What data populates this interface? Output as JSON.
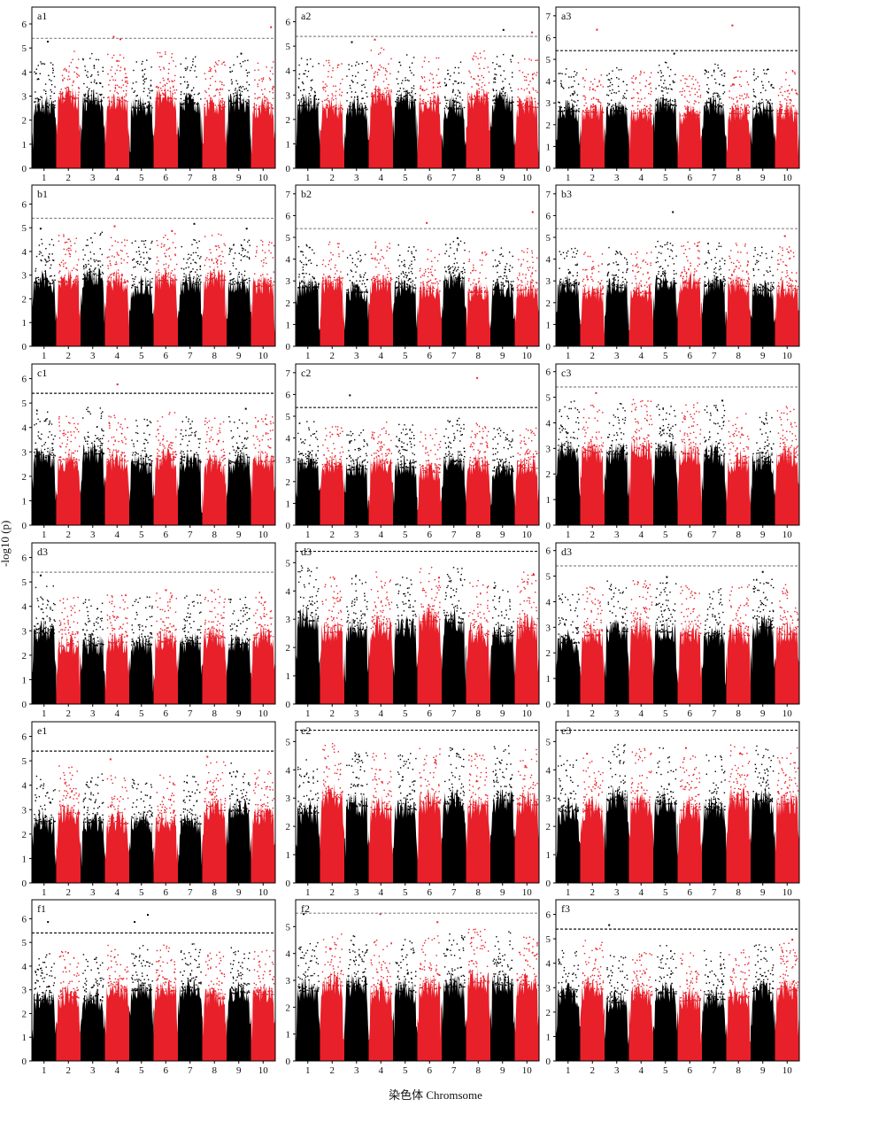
{
  "figure": {
    "ylabel": "-log10 (p)",
    "xlabel": "染色体 Chromsome"
  },
  "colors": {
    "odd_chromosome": "#000000",
    "even_chromosome": "#e8202a",
    "threshold_line": "#666666",
    "frame": "#000000"
  },
  "chart_data": [
    {
      "type": "scatter",
      "id": "a1",
      "label": "a1",
      "x_ticks": [
        "1",
        "2",
        "3",
        "4",
        "5",
        "6",
        "7",
        "8",
        "9",
        "10"
      ],
      "y_ticks": [
        0,
        1,
        2,
        3,
        4,
        5,
        6
      ],
      "ylim": [
        0,
        6.7
      ],
      "threshold": 5.4,
      "threshold_style": "grey",
      "peaks": [
        5.9,
        5.4,
        5.5,
        5.3,
        4.5,
        4.8
      ]
    },
    {
      "type": "scatter",
      "id": "a2",
      "label": "a2",
      "x_ticks": [
        "1",
        "2",
        "3",
        "4",
        "5",
        "6",
        "7",
        "8",
        "9",
        "10"
      ],
      "y_ticks": [
        0,
        1,
        2,
        3,
        4,
        5,
        6
      ],
      "ylim": [
        0,
        6.6
      ],
      "threshold": 5.4,
      "threshold_style": "grey",
      "peaks": [
        5.7,
        5.2,
        5.3,
        5.6
      ]
    },
    {
      "type": "scatter",
      "id": "a3",
      "label": "a3",
      "x_ticks": [
        "1",
        "2",
        "3",
        "4",
        "5",
        "6",
        "7",
        "8",
        "9",
        "10"
      ],
      "y_ticks": [
        0,
        1,
        2,
        3,
        4,
        5,
        6,
        7
      ],
      "ylim": [
        0,
        7.4
      ],
      "threshold": 5.4,
      "threshold_style": "black",
      "peaks": [
        6.6,
        6.4,
        5.3
      ]
    },
    {
      "type": "scatter",
      "id": "b1",
      "label": "b1",
      "x_ticks": [
        "1",
        "2",
        "3",
        "4",
        "5",
        "6",
        "7",
        "8",
        "9",
        "10"
      ],
      "y_ticks": [
        0,
        1,
        2,
        3,
        4,
        5,
        6
      ],
      "ylim": [
        0,
        6.8
      ],
      "threshold": 5.4,
      "threshold_style": "grey",
      "peaks": [
        5.2,
        5.0,
        4.9,
        5.0,
        5.1
      ]
    },
    {
      "type": "scatter",
      "id": "b2",
      "label": "b2",
      "x_ticks": [
        "1",
        "2",
        "3",
        "4",
        "5",
        "6",
        "7",
        "8",
        "9",
        "10"
      ],
      "y_ticks": [
        0,
        1,
        2,
        3,
        4,
        5,
        6,
        7
      ],
      "ylim": [
        0,
        7.4
      ],
      "threshold": 5.4,
      "threshold_style": "grey",
      "peaks": [
        5.7,
        6.2,
        5.0
      ]
    },
    {
      "type": "scatter",
      "id": "b3",
      "label": "b3",
      "x_ticks": [
        "1",
        "2",
        "3",
        "4",
        "5",
        "6",
        "7",
        "8",
        "9",
        "10"
      ],
      "y_ticks": [
        0,
        1,
        2,
        3,
        4,
        5,
        6,
        7
      ],
      "ylim": [
        0,
        7.4
      ],
      "threshold": 5.4,
      "threshold_style": "grey",
      "peaks": [
        6.2,
        5.1
      ]
    },
    {
      "type": "scatter",
      "id": "c1",
      "label": "c1",
      "x_ticks": [
        "1",
        "2",
        "3",
        "4",
        "5",
        "6",
        "7",
        "8",
        "9",
        "10"
      ],
      "y_ticks": [
        0,
        1,
        2,
        3,
        4,
        5,
        6
      ],
      "ylim": [
        0,
        6.6
      ],
      "threshold": 5.4,
      "threshold_style": "black",
      "peaks": [
        5.8,
        4.8
      ]
    },
    {
      "type": "scatter",
      "id": "c2",
      "label": "c2",
      "x_ticks": [
        "1",
        "2",
        "3",
        "4",
        "5",
        "6",
        "7",
        "8",
        "9",
        "10"
      ],
      "y_ticks": [
        0,
        1,
        2,
        3,
        4,
        5,
        6,
        7
      ],
      "ylim": [
        0,
        7.4
      ],
      "threshold": 5.4,
      "threshold_style": "black",
      "peaks": [
        6.0,
        6.8
      ]
    },
    {
      "type": "scatter",
      "id": "c3",
      "label": "c3",
      "x_ticks": [
        "1",
        "2",
        "3",
        "4",
        "5",
        "6",
        "7",
        "8",
        "9",
        "10"
      ],
      "y_ticks": [
        0,
        1,
        2,
        3,
        4,
        5,
        6
      ],
      "ylim": [
        0,
        6.3
      ],
      "threshold": 5.4,
      "threshold_style": "grey",
      "peaks": [
        5.2,
        4.9
      ]
    },
    {
      "type": "scatter",
      "id": "d3a",
      "label": "d3",
      "x_ticks": [
        "1",
        "2",
        "3",
        "4",
        "5",
        "6",
        "7",
        "8",
        "9",
        "10"
      ],
      "y_ticks": [
        0,
        1,
        2,
        3,
        4,
        5,
        6
      ],
      "ylim": [
        0,
        6.6
      ],
      "threshold": 5.4,
      "threshold_style": "grey",
      "peaks": [
        5.3,
        4.7
      ]
    },
    {
      "type": "scatter",
      "id": "d3b",
      "label": "d3",
      "x_ticks": [
        "1",
        "2",
        "3",
        "4",
        "5",
        "6",
        "7",
        "8",
        "9",
        "10"
      ],
      "y_ticks": [
        0,
        1,
        2,
        3,
        4,
        5
      ],
      "ylim": [
        0,
        5.7
      ],
      "threshold": 5.4,
      "threshold_style": "black",
      "peaks": [
        4.6,
        4.5
      ]
    },
    {
      "type": "scatter",
      "id": "d3c",
      "label": "d3",
      "x_ticks": [
        "1",
        "2",
        "3",
        "4",
        "5",
        "6",
        "7",
        "8",
        "9",
        "10"
      ],
      "y_ticks": [
        0,
        1,
        2,
        3,
        4,
        5,
        6
      ],
      "ylim": [
        0,
        6.3
      ],
      "threshold": 5.4,
      "threshold_style": "grey",
      "peaks": [
        5.2,
        5.0
      ]
    },
    {
      "type": "scatter",
      "id": "e1",
      "label": "e1",
      "x_ticks": [
        "1",
        "2",
        "3",
        "4",
        "5",
        "6",
        "7",
        "8",
        "9",
        "10"
      ],
      "y_ticks": [
        0,
        1,
        2,
        3,
        4,
        5,
        6
      ],
      "ylim": [
        0,
        6.6
      ],
      "threshold": 5.4,
      "threshold_style": "black",
      "peaks": [
        5.2,
        5.1
      ]
    },
    {
      "type": "scatter",
      "id": "e2",
      "label": "e2",
      "x_ticks": [
        "1",
        "2",
        "3",
        "4",
        "5",
        "6",
        "7",
        "8",
        "9",
        "10"
      ],
      "y_ticks": [
        0,
        1,
        2,
        3,
        4,
        5
      ],
      "ylim": [
        0,
        5.7
      ],
      "threshold": 5.4,
      "threshold_style": "black",
      "peaks": [
        4.6,
        4.5
      ]
    },
    {
      "type": "scatter",
      "id": "e3",
      "label": "e3",
      "x_ticks": [
        "1",
        "2",
        "3",
        "4",
        "5",
        "6",
        "7",
        "8",
        "9",
        "10"
      ],
      "y_ticks": [
        0,
        1,
        2,
        3,
        4,
        5
      ],
      "ylim": [
        0,
        5.7
      ],
      "threshold": 5.4,
      "threshold_style": "black",
      "peaks": [
        4.8,
        4.6
      ]
    },
    {
      "type": "scatter",
      "id": "f1",
      "label": "f1",
      "x_ticks": [
        "1",
        "2",
        "3",
        "4",
        "5",
        "6",
        "7",
        "8",
        "9",
        "10"
      ],
      "y_ticks": [
        0,
        1,
        2,
        3,
        4,
        5,
        6
      ],
      "ylim": [
        0,
        6.8
      ],
      "threshold": 5.4,
      "threshold_style": "black",
      "peaks": [
        6.2,
        5.9,
        5.9
      ]
    },
    {
      "type": "scatter",
      "id": "f2",
      "label": "f2",
      "x_ticks": [
        "1",
        "2",
        "3",
        "4",
        "5",
        "6",
        "7",
        "8",
        "9",
        "10"
      ],
      "y_ticks": [
        0,
        1,
        2,
        3,
        4,
        5
      ],
      "ylim": [
        0,
        6.0
      ],
      "threshold": 5.5,
      "threshold_style": "grey",
      "peaks": [
        5.5,
        5.5,
        5.2
      ]
    },
    {
      "type": "scatter",
      "id": "f3",
      "label": "f3",
      "x_ticks": [
        "1",
        "2",
        "3",
        "4",
        "5",
        "6",
        "7",
        "8",
        "9",
        "10"
      ],
      "y_ticks": [
        0,
        1,
        2,
        3,
        4,
        5,
        6
      ],
      "ylim": [
        0,
        6.6
      ],
      "threshold": 5.4,
      "threshold_style": "black",
      "peaks": [
        5.6,
        5.0
      ]
    }
  ]
}
